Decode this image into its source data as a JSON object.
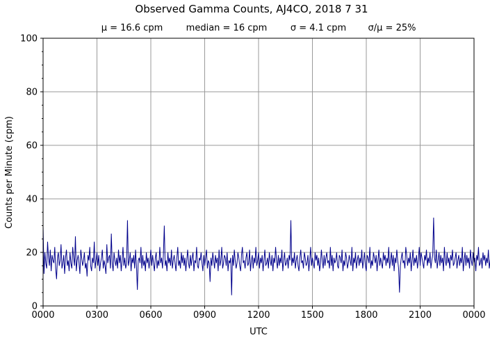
{
  "chart_data": {
    "type": "line",
    "title": "Observed Gamma Counts, AJ4CO, 2018 7 31",
    "stats": [
      "μ = 16.6 cpm",
      "median = 16 cpm",
      "σ = 4.1 cpm",
      "σ/μ = 25%"
    ],
    "xlabel": "UTC",
    "ylabel": "Counts per Minute (cpm)",
    "x_ticks": [
      "0000",
      "0300",
      "0600",
      "0900",
      "1200",
      "1500",
      "1800",
      "2100",
      "0000"
    ],
    "y_ticks": [
      "0",
      "20",
      "40",
      "60",
      "80",
      "100"
    ],
    "xlim_minutes": [
      0,
      1440
    ],
    "ylim": [
      0,
      100
    ],
    "grid": true,
    "series_color": "#00008b",
    "series": [
      {
        "x_step_minutes": 3,
        "values": [
          30,
          12,
          20,
          16,
          14,
          24,
          18,
          15,
          21,
          13,
          19,
          17,
          16,
          22,
          14,
          10,
          18,
          20,
          15,
          17,
          23,
          14,
          16,
          19,
          12,
          18,
          21,
          15,
          17,
          13,
          20,
          16,
          14,
          22,
          18,
          15,
          26,
          13,
          17,
          19,
          16,
          12,
          21,
          18,
          15,
          17,
          20,
          14,
          16,
          11,
          19,
          17,
          22,
          15,
          13,
          18,
          16,
          24,
          14,
          17,
          20,
          15,
          19,
          13,
          16,
          18,
          21,
          14,
          17,
          15,
          12,
          23,
          16,
          18,
          19,
          14,
          27,
          16,
          13,
          20,
          17,
          15,
          18,
          14,
          21,
          16,
          19,
          13,
          17,
          22,
          15,
          18,
          14,
          16,
          32,
          15,
          17,
          20,
          13,
          18,
          16,
          19,
          14,
          21,
          15,
          6,
          17,
          18,
          16,
          22,
          14,
          19,
          15,
          17,
          13,
          20,
          16,
          18,
          14,
          17,
          21,
          15,
          19,
          16,
          13,
          18,
          20,
          14,
          17,
          15,
          22,
          16,
          18,
          14,
          19,
          30,
          15,
          17,
          13,
          20,
          16,
          18,
          15,
          21,
          14,
          17,
          19,
          16,
          13,
          18,
          22,
          15,
          17,
          14,
          20,
          16,
          19,
          15,
          18,
          13,
          17,
          21,
          16,
          14,
          19,
          15,
          18,
          20,
          13,
          17,
          16,
          22,
          15,
          14,
          18,
          17,
          20,
          16,
          13,
          19,
          15,
          18,
          21,
          14,
          17,
          16,
          9,
          18,
          15,
          20,
          17,
          14,
          19,
          16,
          18,
          13,
          21,
          15,
          17,
          22,
          14,
          16,
          19,
          18,
          15,
          20,
          13,
          17,
          16,
          18,
          4,
          19,
          15,
          21,
          17,
          14,
          16,
          20,
          18,
          15,
          13,
          19,
          22,
          16,
          17,
          14,
          18,
          20,
          15,
          16,
          21,
          13,
          17,
          19,
          14,
          18,
          16,
          22,
          15,
          17,
          20,
          14,
          18,
          16,
          19,
          13,
          17,
          21,
          15,
          16,
          18,
          14,
          20,
          17,
          15,
          19,
          13,
          18,
          16,
          22,
          17,
          14,
          19,
          15,
          18,
          16,
          21,
          13,
          17,
          20,
          15,
          16,
          18,
          14,
          19,
          17,
          32,
          15,
          18,
          16,
          20,
          14,
          17,
          19,
          15,
          13,
          18,
          21,
          16,
          17,
          14,
          20,
          18,
          15,
          16,
          19,
          13,
          17,
          22,
          15,
          18,
          16,
          14,
          20,
          17,
          19,
          15,
          18,
          13,
          16,
          21,
          17,
          14,
          19,
          15,
          18,
          20,
          16,
          17,
          14,
          22,
          15,
          19,
          13,
          18,
          16,
          17,
          20,
          15,
          14,
          19,
          18,
          16,
          21,
          13,
          17,
          15,
          20,
          18,
          14,
          16,
          19,
          17,
          15,
          22,
          13,
          18,
          16,
          20,
          14,
          17,
          19,
          15,
          18,
          16,
          21,
          14,
          17,
          20,
          15,
          13,
          19,
          18,
          16,
          22,
          14,
          17,
          15,
          20,
          18,
          16,
          19,
          13,
          17,
          21,
          15,
          18,
          16,
          14,
          20,
          17,
          19,
          15,
          18,
          16,
          22,
          14,
          17,
          20,
          15,
          19,
          13,
          18,
          16,
          21,
          17,
          14,
          5,
          15,
          18,
          20,
          16,
          17,
          14,
          22,
          19,
          15,
          18,
          16,
          20,
          13,
          17,
          21,
          15,
          18,
          16,
          19,
          14,
          17,
          22,
          15,
          20,
          18,
          16,
          14,
          19,
          17,
          21,
          15,
          18,
          16,
          20,
          14,
          17,
          19,
          33,
          18,
          16,
          21,
          14,
          17,
          20,
          15,
          19,
          16,
          18,
          13,
          22,
          17,
          15,
          20,
          16,
          18,
          14,
          19,
          17,
          21,
          15,
          16,
          18,
          20,
          14,
          17,
          19,
          15,
          18,
          16,
          22,
          13,
          17,
          20,
          15,
          19,
          16,
          18,
          14,
          21,
          17,
          15,
          20,
          16,
          18,
          13,
          19,
          17,
          22,
          15,
          16,
          18,
          14,
          20,
          17,
          19,
          15,
          18,
          16,
          21,
          14,
          17,
          20,
          15,
          19,
          16,
          18,
          13,
          22,
          17,
          15,
          20,
          16,
          19,
          14,
          18,
          17,
          21,
          15,
          16,
          20,
          18,
          14,
          17,
          19,
          15,
          18,
          16,
          22,
          13,
          17,
          20,
          15,
          19,
          27
        ]
      }
    ]
  }
}
